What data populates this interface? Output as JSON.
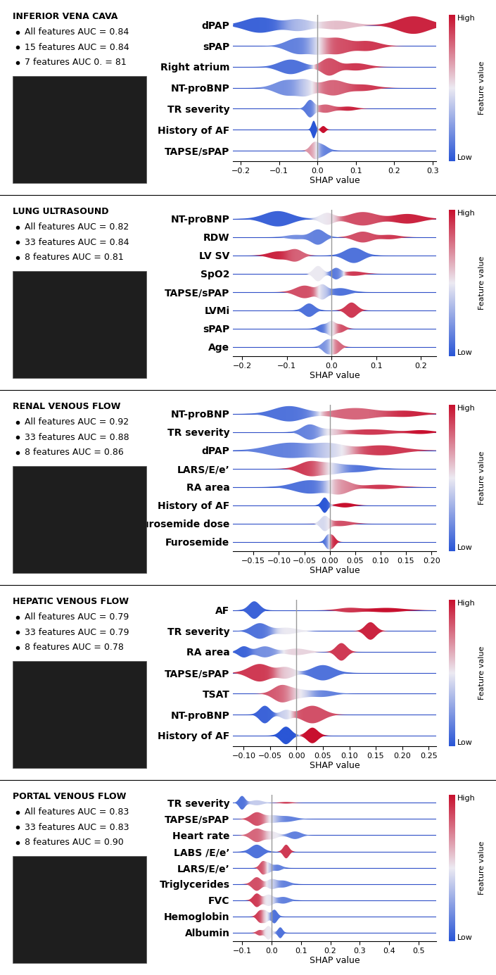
{
  "chart_data": [
    {
      "type": "violin",
      "title": "INFERIOR VENA CAVA",
      "annotations": [
        "All features AUC = 0.84",
        "15 features AUC = 0.84",
        "7 features AUC 0. = 81"
      ],
      "xlabel": "SHAP value",
      "xlim": [
        -0.22,
        0.31
      ],
      "xticks": [
        {
          "value": -0.2,
          "label": "−0.2"
        },
        {
          "value": -0.1,
          "label": "−0.1"
        },
        {
          "value": 0.0,
          "label": "0.0"
        },
        0.1,
        0.2,
        0.3
      ],
      "zero_line": 0,
      "categories": [
        "dPAP",
        "sPAP",
        "Right atrium",
        "NT-proBNP",
        "TR severity",
        "History of AF",
        "TAPSE/sPAP"
      ],
      "clusters": [
        [
          [
            -0.15,
            0.04,
            0.7,
            0.05
          ],
          [
            -0.05,
            0.03,
            0.5,
            0.35
          ],
          [
            0.05,
            0.04,
            0.4,
            0.6
          ],
          [
            0.25,
            0.04,
            0.8,
            0.95
          ]
        ],
        [
          [
            -0.05,
            0.03,
            0.5,
            0.15
          ],
          [
            0.0,
            0.02,
            0.3,
            0.45
          ],
          [
            0.05,
            0.03,
            0.5,
            0.85
          ],
          [
            0.13,
            0.03,
            0.3,
            0.9
          ]
        ],
        [
          [
            -0.07,
            0.03,
            0.6,
            0.1
          ],
          [
            0.03,
            0.02,
            0.7,
            0.85
          ],
          [
            0.1,
            0.03,
            0.3,
            0.9
          ]
        ],
        [
          [
            -0.08,
            0.03,
            0.5,
            0.2
          ],
          [
            -0.03,
            0.02,
            0.4,
            0.45
          ],
          [
            0.04,
            0.03,
            0.5,
            0.8
          ],
          [
            0.12,
            0.03,
            0.2,
            0.9
          ]
        ],
        [
          [
            -0.02,
            0.01,
            0.6,
            0.1
          ],
          [
            0.02,
            0.02,
            0.3,
            0.8
          ],
          [
            0.08,
            0.02,
            0.15,
            0.95
          ]
        ],
        [
          [
            -0.01,
            0.005,
            1.0,
            0.0
          ],
          [
            0.015,
            0.006,
            0.4,
            1.0
          ]
        ],
        [
          [
            -0.01,
            0.01,
            0.5,
            0.8
          ],
          [
            0.01,
            0.015,
            0.5,
            0.15
          ]
        ]
      ],
      "colorbar": {
        "label": "Feature value",
        "high": "High",
        "low": "Low"
      }
    },
    {
      "type": "violin",
      "title": "LUNG ULTRASOUND",
      "annotations": [
        "All features AUC = 0.82",
        "33 features AUC = 0.84",
        "8 features AUC = 0.81"
      ],
      "xlabel": "SHAP value",
      "xlim": [
        -0.22,
        0.235
      ],
      "xticks": [
        {
          "value": -0.2,
          "label": "−0.2"
        },
        {
          "value": -0.1,
          "label": "−0.1"
        },
        {
          "value": 0.0,
          "label": "0.0"
        },
        0.1,
        0.2
      ],
      "zero_line": 0,
      "categories": [
        "NT-proBNP",
        "RDW",
        "LV SV",
        "SpO2",
        "TAPSE/sPAP",
        "LVMi",
        "sPAP",
        "Age"
      ],
      "clusters": [
        [
          [
            -0.12,
            0.03,
            0.8,
            0.05
          ],
          [
            -0.01,
            0.015,
            0.6,
            0.5
          ],
          [
            0.07,
            0.03,
            0.7,
            0.85
          ],
          [
            0.17,
            0.03,
            0.5,
            0.95
          ]
        ],
        [
          [
            -0.08,
            0.02,
            0.2,
            0.2
          ],
          [
            -0.03,
            0.015,
            0.7,
            0.15
          ],
          [
            0.07,
            0.02,
            0.5,
            0.85
          ],
          [
            0.13,
            0.02,
            0.2,
            0.9
          ]
        ],
        [
          [
            -0.12,
            0.02,
            0.4,
            0.95
          ],
          [
            -0.08,
            0.015,
            0.6,
            0.8
          ],
          [
            0.05,
            0.02,
            0.8,
            0.1
          ]
        ],
        [
          [
            -0.03,
            0.01,
            0.7,
            0.5
          ],
          [
            0.01,
            0.01,
            0.5,
            0.1
          ],
          [
            0.05,
            0.02,
            0.2,
            0.9
          ]
        ],
        [
          [
            -0.06,
            0.02,
            0.5,
            0.85
          ],
          [
            -0.02,
            0.01,
            0.5,
            0.4
          ],
          [
            0.02,
            0.02,
            0.3,
            0.1
          ]
        ],
        [
          [
            -0.05,
            0.012,
            0.7,
            0.1
          ],
          [
            0.045,
            0.012,
            0.8,
            0.9
          ]
        ],
        [
          [
            -0.02,
            0.01,
            0.3,
            0.1
          ],
          [
            0.0,
            0.008,
            0.5,
            0.5
          ],
          [
            0.02,
            0.01,
            0.3,
            0.85
          ]
        ],
        [
          [
            -0.01,
            0.01,
            0.4,
            0.2
          ],
          [
            0.01,
            0.01,
            0.4,
            0.8
          ]
        ]
      ],
      "colorbar": {
        "label": "Feature value",
        "high": "High",
        "low": "Low"
      }
    },
    {
      "type": "violin",
      "title": "RENAL VENOUS FLOW",
      "annotations": [
        "All features AUC = 0.92",
        "33 features AUC = 0.88",
        "8 features AUC = 0.86"
      ],
      "xlabel": "SHAP value",
      "xlim": [
        -0.19,
        0.21
      ],
      "xticks": [
        {
          "value": -0.15,
          "label": "−0.15"
        },
        {
          "value": -0.1,
          "label": "−0.10"
        },
        {
          "value": -0.05,
          "label": "−0.05"
        },
        {
          "value": 0.0,
          "label": "0.00"
        },
        0.05,
        {
          "value": 0.1,
          "label": "0.10"
        },
        0.15,
        {
          "value": 0.2,
          "label": "0.20"
        }
      ],
      "zero_line": 0,
      "categories": [
        "NT-proBNP",
        "TR severity",
        "dPAP",
        "LARS/E/e’",
        "RA area",
        "History of AF",
        "Furosemide dose",
        "Furosemide"
      ],
      "clusters": [
        [
          [
            -0.08,
            0.03,
            0.8,
            0.1
          ],
          [
            0.05,
            0.04,
            0.6,
            0.8
          ],
          [
            0.15,
            0.03,
            0.3,
            0.95
          ]
        ],
        [
          [
            -0.04,
            0.015,
            0.8,
            0.15
          ],
          [
            0.0,
            0.02,
            0.3,
            0.5
          ],
          [
            0.08,
            0.04,
            0.3,
            0.9
          ],
          [
            0.18,
            0.02,
            0.2,
            1.0
          ]
        ],
        [
          [
            -0.08,
            0.04,
            0.6,
            0.15
          ],
          [
            0.0,
            0.03,
            0.5,
            0.45
          ],
          [
            0.1,
            0.04,
            0.4,
            0.9
          ]
        ],
        [
          [
            -0.04,
            0.02,
            0.8,
            0.9
          ],
          [
            0.0,
            0.02,
            0.5,
            0.5
          ],
          [
            0.05,
            0.03,
            0.4,
            0.1
          ]
        ],
        [
          [
            -0.04,
            0.03,
            0.6,
            0.1
          ],
          [
            0.02,
            0.02,
            0.6,
            0.75
          ],
          [
            0.1,
            0.03,
            0.2,
            0.9
          ]
        ],
        [
          [
            -0.01,
            0.006,
            1.0,
            0.0
          ],
          [
            0.03,
            0.015,
            0.3,
            1.0
          ]
        ],
        [
          [
            -0.01,
            0.008,
            0.5,
            0.4
          ],
          [
            0.02,
            0.02,
            0.2,
            0.85
          ]
        ],
        [
          [
            -0.005,
            0.005,
            0.6,
            0.05
          ],
          [
            0.005,
            0.006,
            0.7,
            0.95
          ]
        ]
      ],
      "colorbar": {
        "label": "Feature value",
        "high": "High",
        "low": "Low"
      }
    },
    {
      "type": "violin",
      "title": "HEPATIC VENOUS FLOW",
      "annotations": [
        "All features AUC = 0.79",
        "33 features AUC = 0.79",
        "8 features AUC = 0.78"
      ],
      "xlabel": "SHAP value",
      "xlim": [
        -0.12,
        0.265
      ],
      "xticks": [
        {
          "value": -0.1,
          "label": "−0.10"
        },
        {
          "value": -0.05,
          "label": "−0.05"
        },
        {
          "value": 0.0,
          "label": "0.00"
        },
        0.05,
        {
          "value": 0.1,
          "label": "0.10"
        },
        0.15,
        {
          "value": 0.2,
          "label": "0.20"
        },
        0.25
      ],
      "zero_line": 0,
      "categories": [
        "AF",
        "TR severity",
        "RA area",
        "TAPSE/sPAP",
        "TSAT",
        "NT-proBNP",
        "History of AF"
      ],
      "clusters": [
        [
          [
            -0.08,
            0.01,
            0.8,
            0.05
          ],
          [
            0.1,
            0.02,
            0.2,
            0.9
          ],
          [
            0.17,
            0.03,
            0.2,
            1.0
          ]
        ],
        [
          [
            -0.07,
            0.015,
            0.7,
            0.1
          ],
          [
            -0.02,
            0.02,
            0.3,
            0.5
          ],
          [
            0.14,
            0.01,
            0.8,
            0.95
          ]
        ],
        [
          [
            -0.1,
            0.01,
            0.5,
            0.05
          ],
          [
            -0.06,
            0.015,
            0.5,
            0.2
          ],
          [
            0.0,
            0.02,
            0.3,
            0.55
          ],
          [
            0.085,
            0.01,
            0.8,
            0.9
          ]
        ],
        [
          [
            -0.07,
            0.02,
            0.8,
            0.9
          ],
          [
            -0.02,
            0.015,
            0.5,
            0.55
          ],
          [
            0.05,
            0.02,
            0.7,
            0.1
          ]
        ],
        [
          [
            -0.03,
            0.015,
            0.7,
            0.85
          ],
          [
            0.0,
            0.02,
            0.4,
            0.5
          ],
          [
            0.05,
            0.02,
            0.3,
            0.15
          ]
        ],
        [
          [
            -0.06,
            0.01,
            0.8,
            0.05
          ],
          [
            -0.02,
            0.01,
            0.4,
            0.4
          ],
          [
            0.03,
            0.02,
            0.8,
            0.85
          ]
        ],
        [
          [
            -0.02,
            0.01,
            0.9,
            0.0
          ],
          [
            0.03,
            0.01,
            0.8,
            1.0
          ]
        ]
      ],
      "colorbar": {
        "label": "Feature value",
        "high": "High",
        "low": "Low"
      }
    },
    {
      "type": "violin",
      "title": "PORTAL VENOUS FLOW",
      "annotations": [
        "All features AUC = 0.83",
        "33 features AUC = 0.83",
        "8 features AUC = 0.90"
      ],
      "xlabel": "SHAP value",
      "xlim": [
        -0.13,
        0.56
      ],
      "xticks": [
        {
          "value": -0.1,
          "label": "−0.1"
        },
        {
          "value": 0.0,
          "label": "0.0"
        },
        0.1,
        0.2,
        0.3,
        0.4,
        0.5
      ],
      "zero_line": 0,
      "categories": [
        "TR severity",
        "TAPSE/sPAP",
        "Heart rate",
        "LABS /E/e’",
        "LARS/E/e’",
        "Triglycerides",
        "FVC",
        "Hemoglobin",
        "Albumin"
      ],
      "clusters": [
        [
          [
            -0.1,
            0.01,
            0.8,
            0.1
          ],
          [
            -0.05,
            0.02,
            0.3,
            0.4
          ],
          [
            0.05,
            0.02,
            0.1,
            0.9
          ]
        ],
        [
          [
            -0.05,
            0.02,
            0.7,
            0.85
          ],
          [
            0.0,
            0.02,
            0.3,
            0.5
          ],
          [
            0.05,
            0.03,
            0.3,
            0.15
          ]
        ],
        [
          [
            -0.05,
            0.02,
            0.7,
            0.8
          ],
          [
            0.0,
            0.02,
            0.4,
            0.5
          ],
          [
            0.08,
            0.02,
            0.4,
            0.15
          ]
        ],
        [
          [
            -0.05,
            0.02,
            0.7,
            0.1
          ],
          [
            0.05,
            0.01,
            0.7,
            0.9
          ]
        ],
        [
          [
            -0.03,
            0.01,
            0.6,
            0.85
          ],
          [
            -0.01,
            0.01,
            0.4,
            0.4
          ],
          [
            0.02,
            0.015,
            0.3,
            0.15
          ]
        ],
        [
          [
            -0.05,
            0.015,
            0.6,
            0.85
          ],
          [
            0.0,
            0.015,
            0.4,
            0.45
          ],
          [
            0.04,
            0.02,
            0.3,
            0.15
          ]
        ],
        [
          [
            -0.05,
            0.012,
            0.6,
            0.9
          ],
          [
            -0.01,
            0.015,
            0.5,
            0.5
          ],
          [
            0.04,
            0.02,
            0.3,
            0.15
          ]
        ],
        [
          [
            -0.04,
            0.01,
            0.4,
            0.9
          ],
          [
            -0.02,
            0.01,
            0.4,
            0.5
          ],
          [
            0.01,
            0.01,
            0.5,
            0.1
          ]
        ],
        [
          [
            -0.04,
            0.01,
            0.2,
            0.85
          ],
          [
            -0.01,
            0.01,
            0.5,
            0.5
          ],
          [
            0.03,
            0.008,
            0.4,
            0.1
          ]
        ]
      ],
      "colorbar": {
        "label": "Feature value",
        "high": "High",
        "low": "Low"
      }
    }
  ]
}
